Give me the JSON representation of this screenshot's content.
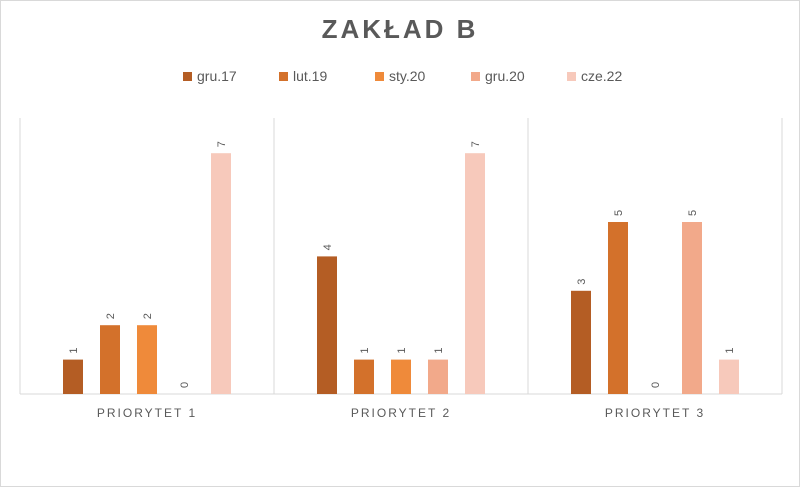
{
  "chart_data": {
    "type": "bar",
    "title": "ZAKŁAD B",
    "categories": [
      "PRIORYTET 1",
      "PRIORYTET 2",
      "PRIORYTET 3"
    ],
    "series": [
      {
        "name": "gru.17",
        "color": "#b45d24",
        "values": [
          1,
          4,
          3
        ]
      },
      {
        "name": "lut.19",
        "color": "#d3712b",
        "values": [
          2,
          1,
          5
        ]
      },
      {
        "name": "sty.20",
        "color": "#ef8a3a",
        "values": [
          2,
          1,
          0
        ]
      },
      {
        "name": "gru.20",
        "color": "#f2a98a",
        "values": [
          0,
          1,
          5
        ]
      },
      {
        "name": "cze.22",
        "color": "#f7c9bb",
        "values": [
          7,
          7,
          1
        ]
      }
    ],
    "ylim": [
      0,
      8
    ],
    "legend_position": "top",
    "grid": false,
    "data_labels": true
  }
}
